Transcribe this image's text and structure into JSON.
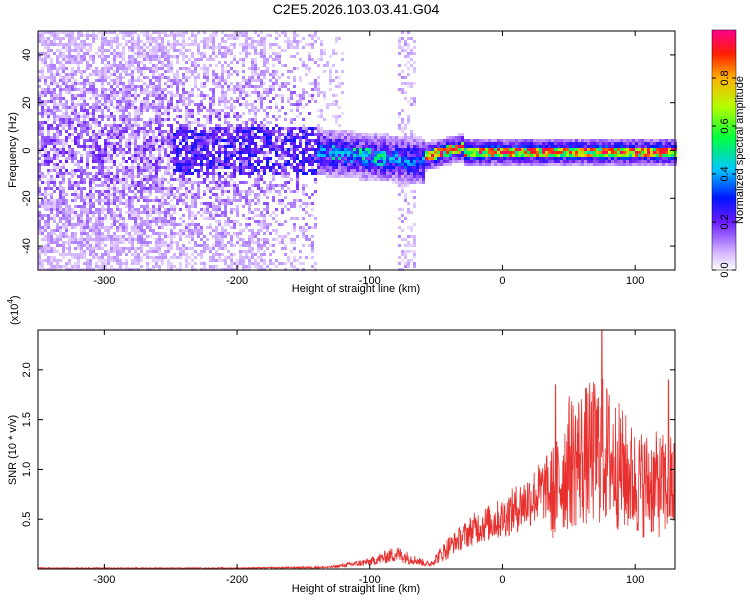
{
  "title": "C2E5.2026.103.03.41.G04",
  "chart_data": [
    {
      "type": "heatmap",
      "name": "spectrogram",
      "xlabel": "Height of straight line (km)",
      "ylabel": "Frequency (Hz)",
      "xlim": [
        -350,
        130
      ],
      "ylim": [
        -50,
        50
      ],
      "xticks": [
        -300,
        -200,
        -100,
        0,
        100
      ],
      "xtick_labels": [
        "-300",
        "-200",
        "-100",
        "0",
        "100"
      ],
      "yticks": [
        -40,
        -20,
        0,
        20,
        40
      ],
      "ytick_labels": [
        "-40",
        "-20",
        "0",
        "20",
        "40"
      ],
      "colorbar": {
        "label": "Normalized spectral amplitude",
        "range": [
          0,
          1
        ],
        "ticks": [
          0.0,
          0.2,
          0.4,
          0.6,
          0.8
        ],
        "tick_labels": [
          "0.0",
          "0.2",
          "0.4",
          "0.6",
          "0.8"
        ]
      },
      "features": [
        {
          "x_start": -350,
          "x_end": -140,
          "freq_spread": 50,
          "amplitude": 0.12,
          "description": "broadband noise"
        },
        {
          "x_start": -140,
          "x_end": -60,
          "freq_center": -2,
          "freq_spread": 8,
          "amplitude": 0.35
        },
        {
          "x_start": -80,
          "x_end": -65,
          "freq_spread": 50,
          "amplitude": 0.08,
          "description": "vertical streak"
        },
        {
          "x_start": -60,
          "x_end": 130,
          "freq_center": 0,
          "freq_spread": 4,
          "amplitude": 0.9
        }
      ]
    },
    {
      "type": "line",
      "name": "snr",
      "xlabel": "Height of straight line (km)",
      "ylabel": "SNR (10 * v/v)",
      "y_multiplier": "(x10",
      "y_multiplier_exp": "4",
      "y_multiplier_close": ")",
      "xlim": [
        -350,
        130
      ],
      "ylim": [
        0,
        2.4
      ],
      "xticks": [
        -300,
        -200,
        -100,
        0,
        100
      ],
      "xtick_labels": [
        "-300",
        "-200",
        "-100",
        "0",
        "100"
      ],
      "yticks": [
        0.5,
        1.0,
        1.5,
        2.0
      ],
      "ytick_labels": [
        "0.5",
        "1.0",
        "1.5",
        "2.0"
      ],
      "color": "#e8302e",
      "envelope": {
        "x": [
          -350,
          -200,
          -130,
          -100,
          -80,
          -70,
          -55,
          -40,
          -20,
          0,
          20,
          40,
          50,
          75,
          100,
          130
        ],
        "y": [
          0.01,
          0.01,
          0.02,
          0.08,
          0.17,
          0.12,
          0.05,
          0.25,
          0.45,
          0.55,
          0.75,
          0.95,
          1.3,
          1.45,
          1.05,
          1.0
        ]
      },
      "peaks": [
        {
          "x": 40,
          "y": 1.85
        },
        {
          "x": 75,
          "y": 2.4
        },
        {
          "x": 125,
          "y": 1.9
        }
      ]
    }
  ]
}
